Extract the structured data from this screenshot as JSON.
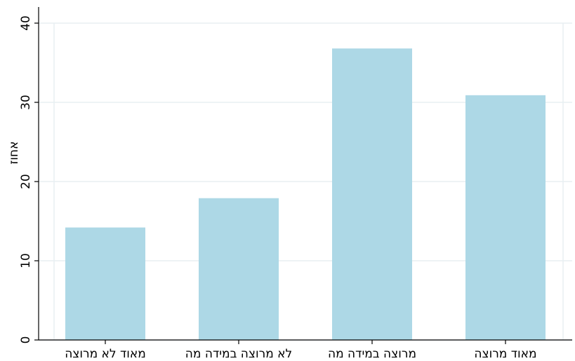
{
  "chart_data": {
    "type": "bar",
    "y_label": "אחוז",
    "categories": [
      "מאוד לא מרוצה",
      "לא מרוצה במידה מה",
      "מרוצה במידה מה",
      "מאוד מרוצה"
    ],
    "values": [
      14.2,
      17.9,
      36.8,
      30.9
    ],
    "color": "#add8e6",
    "ylim": [
      0,
      40
    ],
    "yticks": [
      0,
      10,
      20,
      30,
      40
    ],
    "grid": true
  }
}
